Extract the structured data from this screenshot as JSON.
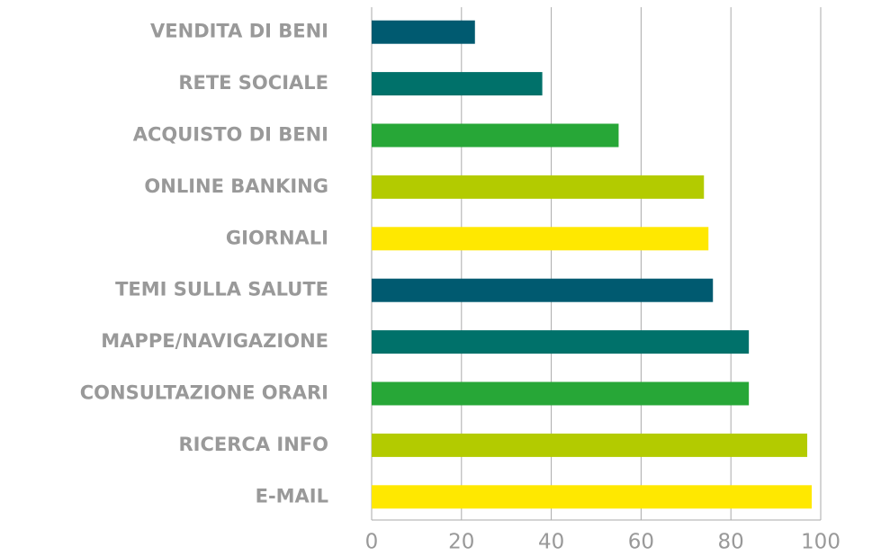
{
  "chart_data": {
    "type": "bar",
    "orientation": "horizontal",
    "categories": [
      "VENDITA DI BENI",
      "RETE SOCIALE",
      "ACQUISTO DI BENI",
      "ONLINE BANKING",
      "GIORNALI",
      "TEMI SULLA SALUTE",
      "MAPPE/NAVIGAZIONE",
      "CONSULTAZIONE ORARI",
      "RICERCA INFO",
      "E-MAIL"
    ],
    "values": [
      23,
      38,
      55,
      74,
      75,
      76,
      84,
      84,
      97,
      98
    ],
    "colors": [
      "#005a70",
      "#00716a",
      "#27a737",
      "#b3cb00",
      "#ffe800",
      "#005a70",
      "#00716a",
      "#27a737",
      "#b3cb00",
      "#ffe800"
    ],
    "xlim": [
      0,
      100
    ],
    "xticks": [
      0,
      20,
      40,
      60,
      80,
      100
    ],
    "grid": true
  }
}
